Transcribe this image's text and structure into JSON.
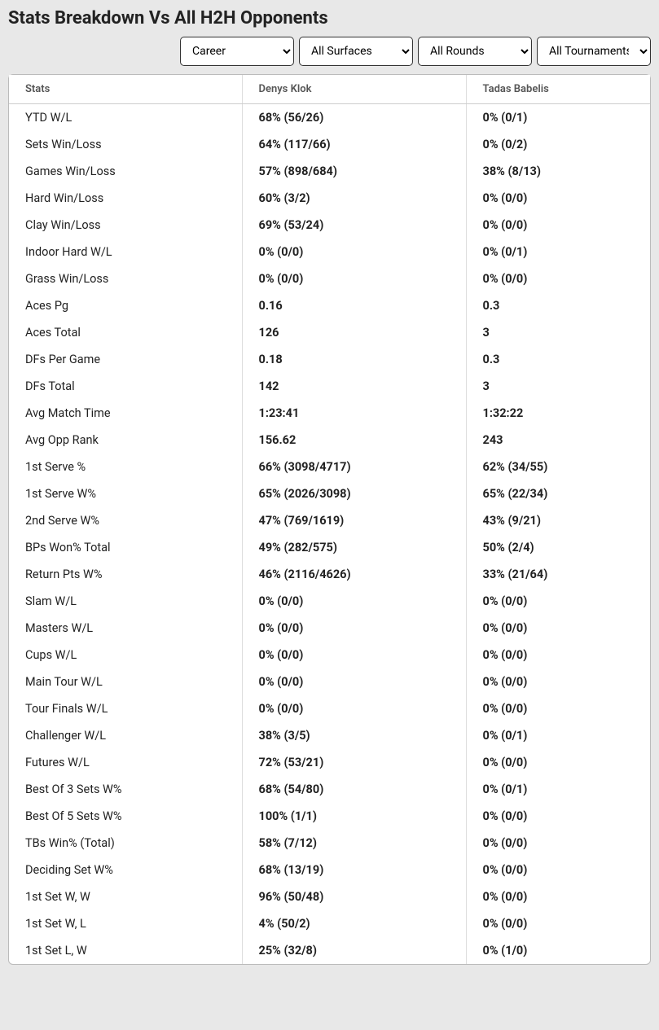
{
  "title": "Stats Breakdown Vs All H2H Opponents",
  "filters": {
    "period": "Career",
    "surface": "All Surfaces",
    "round": "All Rounds",
    "tournament": "All Tournaments"
  },
  "columns": {
    "stats": "Stats",
    "player1": "Denys Klok",
    "player2": "Tadas Babelis"
  },
  "rows": [
    {
      "label": "YTD W/L",
      "p1": "68% (56/26)",
      "p2": "0% (0/1)"
    },
    {
      "label": "Sets Win/Loss",
      "p1": "64% (117/66)",
      "p2": "0% (0/2)"
    },
    {
      "label": "Games Win/Loss",
      "p1": "57% (898/684)",
      "p2": "38% (8/13)"
    },
    {
      "label": "Hard Win/Loss",
      "p1": "60% (3/2)",
      "p2": "0% (0/0)"
    },
    {
      "label": "Clay Win/Loss",
      "p1": "69% (53/24)",
      "p2": "0% (0/0)"
    },
    {
      "label": "Indoor Hard W/L",
      "p1": "0% (0/0)",
      "p2": "0% (0/1)"
    },
    {
      "label": "Grass Win/Loss",
      "p1": "0% (0/0)",
      "p2": "0% (0/0)"
    },
    {
      "label": "Aces Pg",
      "p1": "0.16",
      "p2": "0.3"
    },
    {
      "label": "Aces Total",
      "p1": "126",
      "p2": "3"
    },
    {
      "label": "DFs Per Game",
      "p1": "0.18",
      "p2": "0.3"
    },
    {
      "label": "DFs Total",
      "p1": "142",
      "p2": "3"
    },
    {
      "label": "Avg Match Time",
      "p1": "1:23:41",
      "p2": "1:32:22"
    },
    {
      "label": "Avg Opp Rank",
      "p1": "156.62",
      "p2": "243"
    },
    {
      "label": "1st Serve %",
      "p1": "66% (3098/4717)",
      "p2": "62% (34/55)"
    },
    {
      "label": "1st Serve W%",
      "p1": "65% (2026/3098)",
      "p2": "65% (22/34)"
    },
    {
      "label": "2nd Serve W%",
      "p1": "47% (769/1619)",
      "p2": "43% (9/21)"
    },
    {
      "label": "BPs Won% Total",
      "p1": "49% (282/575)",
      "p2": "50% (2/4)"
    },
    {
      "label": "Return Pts W%",
      "p1": "46% (2116/4626)",
      "p2": "33% (21/64)"
    },
    {
      "label": "Slam W/L",
      "p1": "0% (0/0)",
      "p2": "0% (0/0)"
    },
    {
      "label": "Masters W/L",
      "p1": "0% (0/0)",
      "p2": "0% (0/0)"
    },
    {
      "label": "Cups W/L",
      "p1": "0% (0/0)",
      "p2": "0% (0/0)"
    },
    {
      "label": "Main Tour W/L",
      "p1": "0% (0/0)",
      "p2": "0% (0/0)"
    },
    {
      "label": "Tour Finals W/L",
      "p1": "0% (0/0)",
      "p2": "0% (0/0)"
    },
    {
      "label": "Challenger W/L",
      "p1": "38% (3/5)",
      "p2": "0% (0/1)"
    },
    {
      "label": "Futures W/L",
      "p1": "72% (53/21)",
      "p2": "0% (0/0)"
    },
    {
      "label": "Best Of 3 Sets W%",
      "p1": "68% (54/80)",
      "p2": "0% (0/1)"
    },
    {
      "label": "Best Of 5 Sets W%",
      "p1": "100% (1/1)",
      "p2": "0% (0/0)"
    },
    {
      "label": "TBs Win% (Total)",
      "p1": "58% (7/12)",
      "p2": "0% (0/0)"
    },
    {
      "label": "Deciding Set W%",
      "p1": "68% (13/19)",
      "p2": "0% (0/0)"
    },
    {
      "label": "1st Set W, W",
      "p1": "96% (50/48)",
      "p2": "0% (0/0)"
    },
    {
      "label": "1st Set W, L",
      "p1": "4% (50/2)",
      "p2": "0% (0/0)"
    },
    {
      "label": "1st Set L, W",
      "p1": "25% (32/8)",
      "p2": "0% (1/0)"
    }
  ]
}
